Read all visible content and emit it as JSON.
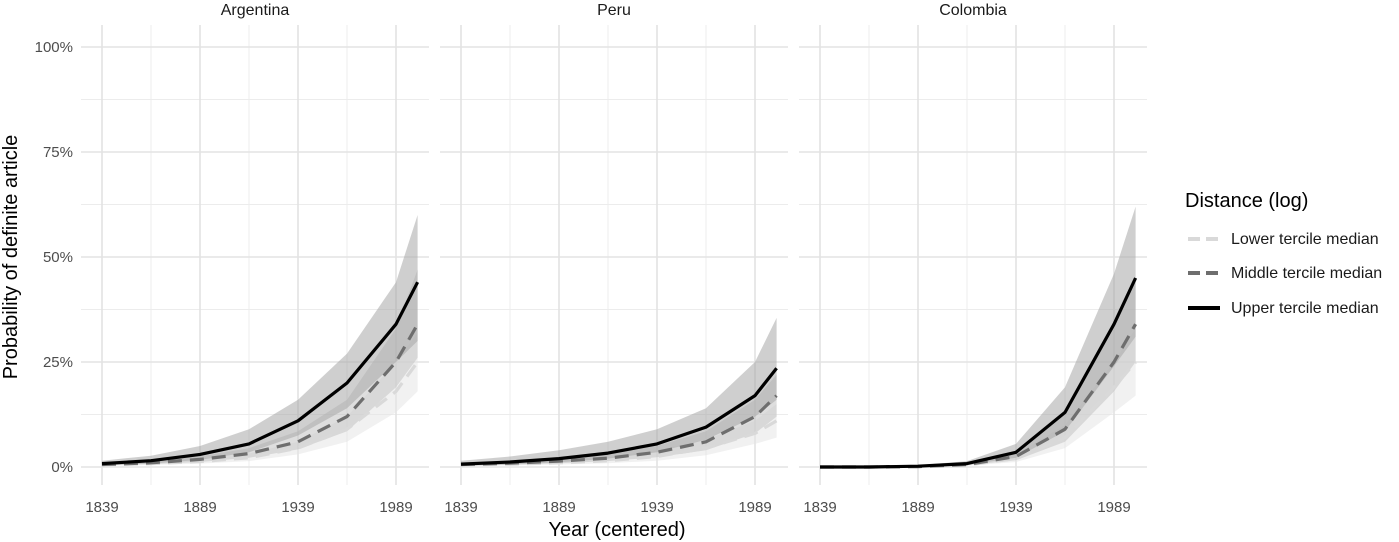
{
  "chart_data": {
    "type": "line",
    "xlabel": "Year (centered)",
    "ylabel": "Probability of definite article",
    "xlim": [
      1825,
      2010
    ],
    "ylim": [
      0,
      1
    ],
    "x_ticks": [
      1839,
      1889,
      1939,
      1989
    ],
    "x_tick_labels": [
      "1839",
      "1889",
      "1939",
      "1989"
    ],
    "y_ticks": [
      0,
      0.25,
      0.5,
      0.75,
      1.0
    ],
    "y_tick_labels": [
      "0%",
      "25%",
      "50%",
      "75%",
      "100%"
    ],
    "grid": true,
    "legend": {
      "title": "Distance (log)",
      "placement": "right",
      "entries": [
        "Lower tercile median",
        "Middle tercile median",
        "Upper tercile median"
      ]
    },
    "series_styles": [
      {
        "color": "#d9d9d9",
        "dash": "dashed"
      },
      {
        "color": "#6e6e6e",
        "dash": "dashed"
      },
      {
        "color": "#000000",
        "dash": "solid"
      }
    ],
    "ribbon_colors": [
      "#e6e6e6",
      "#c2c2c2",
      "#a8a8a8"
    ],
    "panels": [
      {
        "title": "Argentina",
        "x": [
          1839,
          1864,
          1889,
          1914,
          1939,
          1964,
          1989,
          2000
        ],
        "series": [
          {
            "name": "Lower tercile median",
            "values": [
              0.005,
              0.008,
              0.013,
              0.022,
              0.045,
              0.09,
              0.18,
              0.25
            ],
            "lower": [
              0.003,
              0.005,
              0.008,
              0.014,
              0.03,
              0.06,
              0.13,
              0.18
            ],
            "upper": [
              0.008,
              0.012,
              0.02,
              0.032,
              0.06,
              0.12,
              0.25,
              0.32
            ]
          },
          {
            "name": "Middle tercile median",
            "values": [
              0.006,
              0.01,
              0.018,
              0.032,
              0.06,
              0.12,
              0.25,
              0.34
            ],
            "lower": [
              0.004,
              0.007,
              0.012,
              0.022,
              0.042,
              0.085,
              0.19,
              0.26
            ],
            "upper": [
              0.009,
              0.014,
              0.025,
              0.045,
              0.085,
              0.16,
              0.33,
              0.47
            ]
          },
          {
            "name": "Upper tercile median",
            "values": [
              0.008,
              0.015,
              0.03,
              0.055,
              0.11,
              0.2,
              0.34,
              0.44
            ],
            "lower": [
              0.004,
              0.008,
              0.017,
              0.035,
              0.075,
              0.14,
              0.25,
              0.3
            ],
            "upper": [
              0.015,
              0.027,
              0.05,
              0.09,
              0.16,
              0.27,
              0.44,
              0.6
            ]
          }
        ]
      },
      {
        "title": "Peru",
        "x": [
          1839,
          1864,
          1889,
          1914,
          1939,
          1964,
          1989,
          2000
        ],
        "series": [
          {
            "name": "Lower tercile median",
            "values": [
              0.005,
              0.007,
              0.01,
              0.015,
              0.025,
              0.045,
              0.08,
              0.11
            ],
            "lower": [
              0.003,
              0.004,
              0.006,
              0.009,
              0.015,
              0.028,
              0.055,
              0.07
            ],
            "upper": [
              0.008,
              0.011,
              0.015,
              0.024,
              0.04,
              0.065,
              0.11,
              0.15
            ]
          },
          {
            "name": "Middle tercile median",
            "values": [
              0.006,
              0.009,
              0.014,
              0.021,
              0.035,
              0.06,
              0.12,
              0.17
            ],
            "lower": [
              0.003,
              0.005,
              0.009,
              0.014,
              0.023,
              0.04,
              0.08,
              0.12
            ],
            "upper": [
              0.01,
              0.015,
              0.022,
              0.032,
              0.05,
              0.085,
              0.16,
              0.22
            ]
          },
          {
            "name": "Upper tercile median",
            "values": [
              0.007,
              0.012,
              0.02,
              0.033,
              0.055,
              0.095,
              0.17,
              0.235
            ],
            "lower": [
              0.003,
              0.006,
              0.011,
              0.02,
              0.035,
              0.065,
              0.12,
              0.16
            ],
            "upper": [
              0.015,
              0.025,
              0.04,
              0.06,
              0.09,
              0.14,
              0.25,
              0.355
            ]
          }
        ]
      },
      {
        "title": "Colombia",
        "x": [
          1839,
          1864,
          1889,
          1914,
          1939,
          1964,
          1989,
          2000
        ],
        "series": [
          {
            "name": "Lower tercile median",
            "values": [
              0.0,
              0.0,
              0.001,
              0.005,
              0.02,
              0.07,
              0.19,
              0.25
            ],
            "lower": [
              0.0,
              0.0,
              0.0,
              0.003,
              0.012,
              0.045,
              0.13,
              0.17
            ],
            "upper": [
              0.0,
              0.001,
              0.002,
              0.008,
              0.03,
              0.1,
              0.25,
              0.33
            ]
          },
          {
            "name": "Middle tercile median",
            "values": [
              0.0,
              0.0,
              0.001,
              0.006,
              0.025,
              0.09,
              0.25,
              0.34
            ],
            "lower": [
              0.0,
              0.0,
              0.0,
              0.004,
              0.016,
              0.06,
              0.18,
              0.25
            ],
            "upper": [
              0.0,
              0.001,
              0.002,
              0.009,
              0.037,
              0.13,
              0.33,
              0.45
            ]
          },
          {
            "name": "Upper tercile median",
            "values": [
              0.0,
              0.0,
              0.002,
              0.008,
              0.035,
              0.13,
              0.34,
              0.45
            ],
            "lower": [
              0.0,
              0.0,
              0.001,
              0.005,
              0.022,
              0.085,
              0.24,
              0.31
            ],
            "upper": [
              0.0,
              0.001,
              0.004,
              0.014,
              0.055,
              0.19,
              0.46,
              0.62
            ]
          }
        ]
      }
    ]
  }
}
